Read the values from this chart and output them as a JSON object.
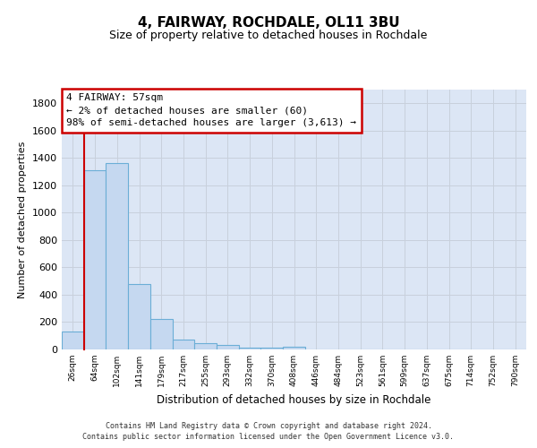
{
  "title1": "4, FAIRWAY, ROCHDALE, OL11 3BU",
  "title2": "Size of property relative to detached houses in Rochdale",
  "xlabel": "Distribution of detached houses by size in Rochdale",
  "ylabel": "Number of detached properties",
  "bar_labels": [
    "26sqm",
    "64sqm",
    "102sqm",
    "141sqm",
    "179sqm",
    "217sqm",
    "255sqm",
    "293sqm",
    "332sqm",
    "370sqm",
    "408sqm",
    "446sqm",
    "484sqm",
    "523sqm",
    "561sqm",
    "599sqm",
    "637sqm",
    "675sqm",
    "714sqm",
    "752sqm",
    "790sqm"
  ],
  "bar_values": [
    130,
    1310,
    1360,
    480,
    225,
    75,
    45,
    30,
    15,
    15,
    20,
    0,
    0,
    0,
    0,
    0,
    0,
    0,
    0,
    0,
    0
  ],
  "bar_color": "#c5d8f0",
  "bar_edge_color": "#6baed6",
  "ylim": [
    0,
    1900
  ],
  "yticks": [
    0,
    200,
    400,
    600,
    800,
    1000,
    1200,
    1400,
    1600,
    1800
  ],
  "red_line_x": 0.5,
  "annotation_line1": "4 FAIRWAY: 57sqm",
  "annotation_line2": "← 2% of detached houses are smaller (60)",
  "annotation_line3": "98% of semi-detached houses are larger (3,613) →",
  "annotation_box_color": "#ffffff",
  "annotation_border_color": "#cc0000",
  "footer1": "Contains HM Land Registry data © Crown copyright and database right 2024.",
  "footer2": "Contains public sector information licensed under the Open Government Licence v3.0.",
  "grid_color": "#c8d0dc",
  "background_color": "#dce6f5"
}
